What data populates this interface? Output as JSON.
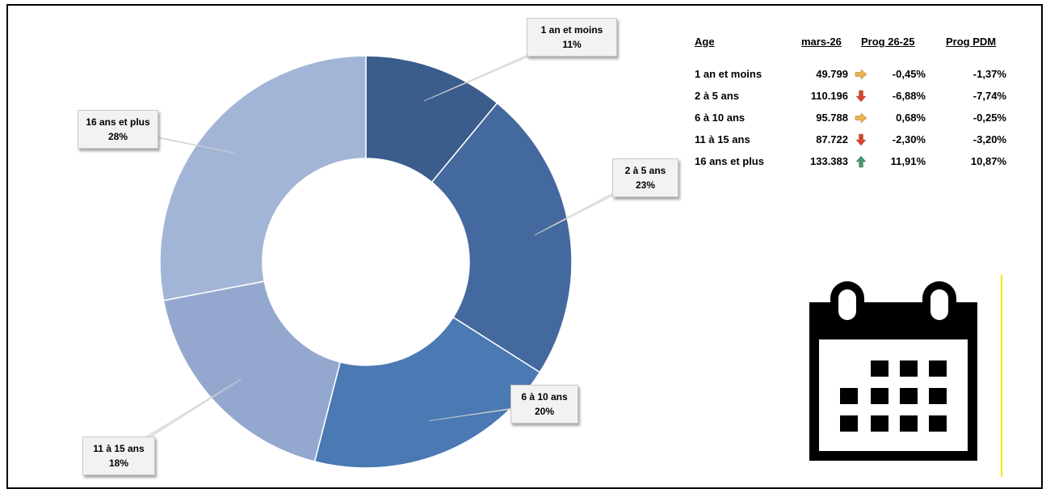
{
  "chart_data": {
    "type": "pie",
    "variant": "donut",
    "categories": [
      "1 an et moins",
      "2 à 5 ans",
      "6 à 10 ans",
      "11 à 15 ans",
      "16 ans et plus"
    ],
    "values": [
      11,
      23,
      20,
      18,
      28
    ],
    "value_unit": "%",
    "data_labels": [
      {
        "name": "1 an et moins",
        "pct": "11%"
      },
      {
        "name": "2 à 5 ans",
        "pct": "23%"
      },
      {
        "name": "6 à 10 ans",
        "pct": "20%"
      },
      {
        "name": "11 à 15 ans",
        "pct": "18%"
      },
      {
        "name": "16 ans et plus",
        "pct": "28%"
      }
    ],
    "colors": [
      "#3a5d8c",
      "#44699e",
      "#4a79b3",
      "#94a8cf",
      "#a3b5d6"
    ]
  },
  "stats_table": {
    "headers": {
      "age": "Age",
      "month": "mars-26",
      "prog": "Prog 26-25",
      "pdm": "Prog PDM"
    },
    "rows": [
      {
        "age": "1 an et moins",
        "value": "49.799",
        "trend": "flat",
        "prog": "-0,45%",
        "pdm": "-1,37%"
      },
      {
        "age": "2 à 5 ans",
        "value": "110.196",
        "trend": "down",
        "prog": "-6,88%",
        "pdm": "-7,74%"
      },
      {
        "age": "6 à 10 ans",
        "value": "95.788",
        "trend": "flat",
        "prog": "0,68%",
        "pdm": "-0,25%"
      },
      {
        "age": "11 à 15 ans",
        "value": "87.722",
        "trend": "down",
        "prog": "-2,30%",
        "pdm": "-3,20%"
      },
      {
        "age": "16 ans et plus",
        "value": "133.383",
        "trend": "up",
        "prog": "11,91%",
        "pdm": "10,87%"
      }
    ],
    "trend_colors": {
      "flat": "#f0b24a",
      "down": "#d9442b",
      "up": "#3e9c7a"
    }
  },
  "icons": {
    "calendar": "calendar-icon"
  }
}
